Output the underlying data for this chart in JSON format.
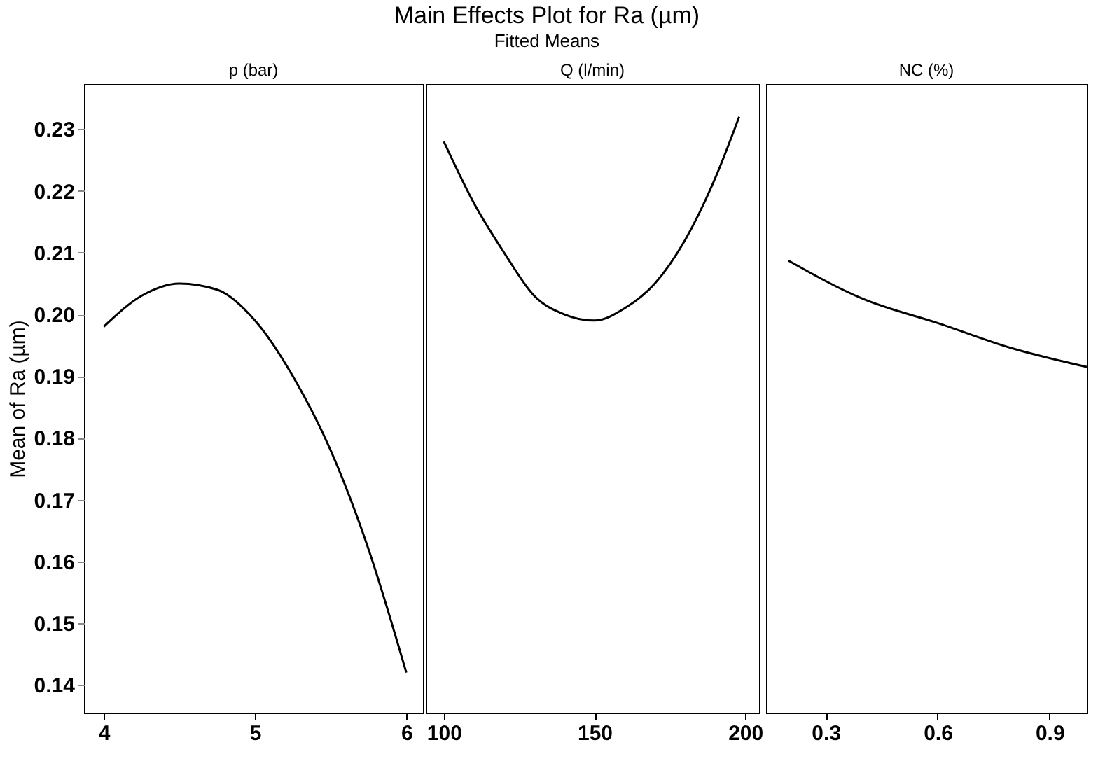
{
  "chart_data": [
    {
      "type": "line",
      "xlabel": "p (bar)",
      "ylabel": "Mean of Ra (µm)",
      "x": [
        4,
        4.25,
        4.5,
        4.75,
        5,
        5.25,
        5.5,
        5.75,
        6
      ],
      "series": [
        {
          "color": "#000000",
          "values": [
            0.198,
            0.203,
            0.205,
            0.204,
            0.199,
            0.19,
            0.178,
            0.162,
            0.142
          ]
        }
      ],
      "xlim": [
        3.87,
        6.11
      ],
      "xticks": [
        4,
        5,
        6
      ],
      "ylim": [
        0.1355,
        0.2373
      ],
      "yticks": [
        0.14,
        0.15,
        0.16,
        0.17,
        0.18,
        0.19,
        {
          "value": 0.2,
          "label": "0.20"
        },
        0.21,
        0.22,
        0.23
      ]
    },
    {
      "type": "line",
      "title": "Main Effects Plot for Ra (µm)",
      "subtitle": "Fitted Means",
      "xlabel": "Q (l/min)",
      "x": [
        100,
        110,
        120,
        130,
        140,
        150,
        160,
        170,
        180,
        190,
        198
      ],
      "series": [
        {
          "color": "#000000",
          "values": [
            0.228,
            0.218,
            0.21,
            0.203,
            0.2,
            0.199,
            0.201,
            0.205,
            0.212,
            0.222,
            0.232
          ]
        }
      ],
      "xlim": [
        94,
        204.6
      ],
      "xticks": [
        100,
        150,
        200
      ],
      "ylim": [
        0.1355,
        0.2373
      ],
      "tick_labels": "x"
    },
    {
      "type": "line",
      "xlabel": "NC (%)",
      "x": [
        0.2,
        0.4,
        0.6,
        0.8,
        1.0
      ],
      "series": [
        {
          "color": "#000000",
          "values": [
            0.2087,
            0.2025,
            0.1986,
            0.1945,
            0.1915
          ]
        }
      ],
      "xlim": [
        0.14,
        1.0
      ],
      "xticks": [
        0.3,
        0.6,
        0.9
      ],
      "ylim": [
        0.1355,
        0.2373
      ],
      "tick_labels": "x"
    }
  ]
}
